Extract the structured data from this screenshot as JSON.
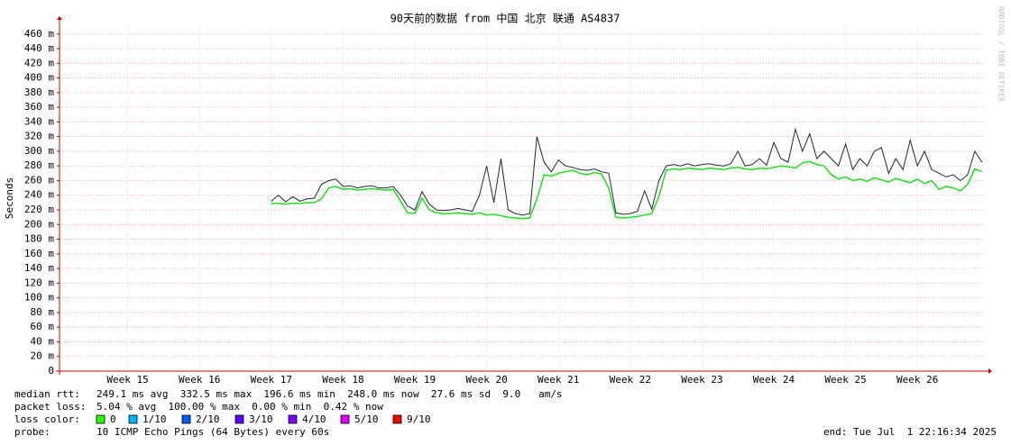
{
  "chart_data": {
    "type": "line",
    "title": "90天前的数据 from 中国 北京 联通 AS4837",
    "y_label": "Seconds",
    "watermark": "RRDTOOL / TOBI OETIKER",
    "xlim": [
      14.55,
      27.44
    ],
    "xticks": [
      {
        "value": 15.5,
        "label": "Week 15"
      },
      {
        "value": 16.5,
        "label": "Week 16"
      },
      {
        "value": 17.5,
        "label": "Week 17"
      },
      {
        "value": 18.5,
        "label": "Week 18"
      },
      {
        "value": 19.5,
        "label": "Week 19"
      },
      {
        "value": 20.5,
        "label": "Week 20"
      },
      {
        "value": 21.5,
        "label": "Week 21"
      },
      {
        "value": 22.5,
        "label": "Week 22"
      },
      {
        "value": 23.5,
        "label": "Week 23"
      },
      {
        "value": 24.5,
        "label": "Week 24"
      },
      {
        "value": 25.5,
        "label": "Week 25"
      },
      {
        "value": 26.5,
        "label": "Week 26"
      }
    ],
    "ylim": [
      0,
      0.472
    ],
    "yticks": [
      0,
      {
        "value": 0.02,
        "label": "20 m"
      },
      {
        "value": 0.04,
        "label": "40 m"
      },
      {
        "value": 0.06,
        "label": "60 m"
      },
      {
        "value": 0.08,
        "label": "80 m"
      },
      {
        "value": 0.1,
        "label": "100 m"
      },
      {
        "value": 0.12,
        "label": "120 m"
      },
      {
        "value": 0.14,
        "label": "140 m"
      },
      {
        "value": 0.16,
        "label": "160 m"
      },
      {
        "value": 0.18,
        "label": "180 m"
      },
      {
        "value": 0.2,
        "label": "200 m"
      },
      {
        "value": 0.22,
        "label": "220 m"
      },
      {
        "value": 0.24,
        "label": "240 m"
      },
      {
        "value": 0.26,
        "label": "260 m"
      },
      {
        "value": 0.28,
        "label": "280 m"
      },
      {
        "value": 0.3,
        "label": "300 m"
      },
      {
        "value": 0.32,
        "label": "320 m"
      },
      {
        "value": 0.34,
        "label": "340 m"
      },
      {
        "value": 0.36,
        "label": "360 m"
      },
      {
        "value": 0.38,
        "label": "380 m"
      },
      {
        "value": 0.4,
        "label": "400 m"
      },
      {
        "value": 0.42,
        "label": "420 m"
      },
      {
        "value": 0.44,
        "label": "440 m"
      },
      {
        "value": 0.46,
        "label": "460 m"
      }
    ],
    "grid": true,
    "x": [
      17.5,
      17.6,
      17.7,
      17.8,
      17.9,
      18.0,
      18.1,
      18.2,
      18.3,
      18.4,
      18.5,
      18.6,
      18.7,
      18.8,
      18.9,
      19.0,
      19.1,
      19.2,
      19.3,
      19.4,
      19.5,
      19.6,
      19.7,
      19.8,
      19.9,
      20.0,
      20.1,
      20.2,
      20.3,
      20.4,
      20.5,
      20.6,
      20.7,
      20.8,
      20.9,
      21.0,
      21.1,
      21.2,
      21.3,
      21.4,
      21.5,
      21.6,
      21.7,
      21.8,
      21.9,
      22.0,
      22.1,
      22.2,
      22.3,
      22.4,
      22.5,
      22.6,
      22.7,
      22.8,
      22.9,
      23.0,
      23.1,
      23.2,
      23.3,
      23.4,
      23.5,
      23.6,
      23.7,
      23.8,
      23.9,
      24.0,
      24.1,
      24.2,
      24.3,
      24.4,
      24.5,
      24.6,
      24.7,
      24.8,
      24.9,
      25.0,
      25.1,
      25.2,
      25.3,
      25.4,
      25.5,
      25.6,
      25.7,
      25.8,
      25.9,
      26.0,
      26.1,
      26.2,
      26.3,
      26.4,
      26.5,
      26.6,
      26.7,
      26.8,
      26.9,
      27.0,
      27.1,
      27.2,
      27.3,
      27.4
    ],
    "series": [
      {
        "color": "#1a2a3a",
        "values": [
          0.232,
          0.24,
          0.231,
          0.238,
          0.232,
          0.235,
          0.236,
          0.255,
          0.26,
          0.262,
          0.252,
          0.253,
          0.25,
          0.252,
          0.253,
          0.25,
          0.25,
          0.252,
          0.24,
          0.225,
          0.22,
          0.245,
          0.228,
          0.22,
          0.219,
          0.22,
          0.222,
          0.22,
          0.218,
          0.24,
          0.28,
          0.23,
          0.29,
          0.22,
          0.215,
          0.213,
          0.215,
          0.32,
          0.285,
          0.272,
          0.288,
          0.28,
          0.278,
          0.275,
          0.274,
          0.276,
          0.272,
          0.27,
          0.216,
          0.214,
          0.215,
          0.218,
          0.246,
          0.221,
          0.26,
          0.28,
          0.282,
          0.28,
          0.283,
          0.28,
          0.282,
          0.283,
          0.281,
          0.28,
          0.283,
          0.3,
          0.28,
          0.282,
          0.29,
          0.281,
          0.312,
          0.29,
          0.285,
          0.33,
          0.3,
          0.324,
          0.29,
          0.3,
          0.29,
          0.28,
          0.31,
          0.275,
          0.29,
          0.28,
          0.3,
          0.305,
          0.27,
          0.29,
          0.275,
          0.315,
          0.28,
          0.3,
          0.275,
          0.27,
          0.265,
          0.268,
          0.26,
          0.268,
          0.3,
          0.285
        ]
      },
      {
        "color": "#22dd22",
        "values": [
          0.229,
          0.229,
          0.228,
          0.229,
          0.229,
          0.23,
          0.23,
          0.235,
          0.25,
          0.252,
          0.248,
          0.249,
          0.247,
          0.248,
          0.249,
          0.248,
          0.247,
          0.248,
          0.232,
          0.216,
          0.215,
          0.236,
          0.22,
          0.216,
          0.215,
          0.215,
          0.216,
          0.215,
          0.214,
          0.216,
          0.213,
          0.214,
          0.212,
          0.21,
          0.209,
          0.208,
          0.209,
          0.235,
          0.268,
          0.266,
          0.27,
          0.272,
          0.274,
          0.27,
          0.268,
          0.271,
          0.269,
          0.25,
          0.21,
          0.209,
          0.21,
          0.211,
          0.213,
          0.215,
          0.238,
          0.274,
          0.276,
          0.275,
          0.277,
          0.276,
          0.275,
          0.277,
          0.276,
          0.275,
          0.277,
          0.278,
          0.276,
          0.275,
          0.277,
          0.276,
          0.278,
          0.28,
          0.279,
          0.277,
          0.284,
          0.286,
          0.282,
          0.28,
          0.268,
          0.262,
          0.265,
          0.26,
          0.262,
          0.259,
          0.264,
          0.261,
          0.258,
          0.263,
          0.26,
          0.257,
          0.262,
          0.256,
          0.26,
          0.248,
          0.252,
          0.25,
          0.246,
          0.255,
          0.276,
          0.272
        ]
      }
    ],
    "stats": [
      {
        "label": "median rtt:",
        "text": "249.1 ms avg  332.5 ms max  196.6 ms min  248.0 ms now  27.6 ms sd  9.0   am/s"
      },
      {
        "label": "packet loss:",
        "text": "5.04 % avg  100.00 % max  0.00 % min  0.42 % now"
      }
    ],
    "loss_label": "loss color:",
    "loss_colors": [
      {
        "name": "0",
        "color": "#26ff00"
      },
      {
        "name": "1/10",
        "color": "#00b8ff"
      },
      {
        "name": "2/10",
        "color": "#0059ff"
      },
      {
        "name": "3/10",
        "color": "#5e00ff"
      },
      {
        "name": "4/10",
        "color": "#7e00ff"
      },
      {
        "name": "5/10",
        "color": "#dd00ff"
      },
      {
        "name": "9/10",
        "color": "#ff0000"
      }
    ],
    "probe_label": "probe:",
    "probe": "10 ICMP Echo Pings (64 Bytes) every 60s",
    "end": "end: Tue Jul  1 22:16:34 2025"
  }
}
